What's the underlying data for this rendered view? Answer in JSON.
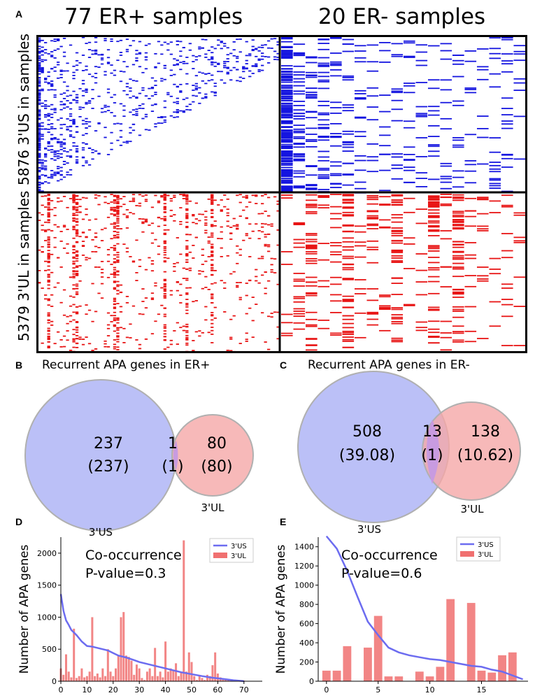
{
  "panel_labels": {
    "a": "A",
    "b": "B",
    "c": "C",
    "d": "D",
    "e": "E"
  },
  "heatmaps": {
    "col_titles": [
      "77 ER+ samples",
      "20 ER- samples"
    ],
    "row_labels": [
      "5876 3'US in samples",
      "5379 3'UL in samples"
    ],
    "colors": {
      "us": "#1515e0",
      "ul": "#e81414",
      "border": "#000000"
    }
  },
  "venn_b": {
    "title": "Recurrent APA genes in ER+",
    "left_count": "237",
    "left_expected": "(237)",
    "overlap_count": "1",
    "overlap_expected": "(1)",
    "right_count": "80",
    "right_expected": "(80)",
    "left_name": "3'US",
    "right_name": "3'UL"
  },
  "venn_c": {
    "title": "Recurrent APA genes in ER-",
    "left_count": "508",
    "left_expected": "(39.08)",
    "overlap_count": "13",
    "overlap_expected": "(1)",
    "right_count": "138",
    "right_expected": "(10.62)",
    "left_name": "3'US",
    "right_name": "3'UL"
  },
  "chart_data": [
    {
      "panel": "D",
      "type": "bar",
      "ylabel": "Number of APA genes",
      "annotation": [
        "Co-occurrence",
        "P-value=0.3"
      ],
      "xlim": [
        0,
        77
      ],
      "ylim": [
        0,
        2250
      ],
      "xticks": [
        0,
        10,
        20,
        30,
        40,
        50,
        60,
        70
      ],
      "yticks": [
        0,
        500,
        1000,
        1500,
        2000
      ],
      "legend": [
        "3'US",
        "3'UL"
      ],
      "series": [
        {
          "name": "3'US",
          "kind": "line",
          "x": [
            0,
            1,
            2,
            3,
            4,
            5,
            6,
            8,
            10,
            12,
            15,
            18,
            20,
            22,
            25,
            28,
            30,
            33,
            36,
            40,
            43,
            46,
            50,
            54,
            58,
            62,
            66,
            68,
            70
          ],
          "values": [
            1360,
            1100,
            950,
            880,
            800,
            760,
            720,
            620,
            550,
            540,
            510,
            480,
            440,
            400,
            370,
            330,
            300,
            270,
            240,
            200,
            170,
            140,
            110,
            80,
            55,
            35,
            15,
            8,
            2
          ]
        },
        {
          "name": "3'UL",
          "kind": "bar",
          "x": [
            0,
            1,
            2,
            3,
            4,
            5,
            6,
            7,
            8,
            9,
            10,
            11,
            12,
            13,
            14,
            15,
            16,
            17,
            18,
            19,
            20,
            21,
            22,
            23,
            24,
            25,
            26,
            27,
            28,
            29,
            30,
            31,
            32,
            33,
            34,
            35,
            36,
            37,
            38,
            39,
            40,
            41,
            42,
            43,
            44,
            45,
            46,
            47,
            48,
            49,
            50,
            51,
            52,
            53,
            54,
            55,
            56,
            57,
            58,
            59,
            60,
            61,
            62,
            63,
            64,
            65,
            66,
            67,
            68,
            69,
            70
          ],
          "values": [
            200,
            100,
            420,
            150,
            60,
            820,
            50,
            80,
            200,
            60,
            80,
            150,
            1000,
            80,
            120,
            60,
            200,
            80,
            500,
            150,
            80,
            200,
            400,
            1000,
            1080,
            400,
            380,
            320,
            100,
            260,
            200,
            50,
            20,
            150,
            200,
            80,
            520,
            80,
            150,
            60,
            620,
            150,
            200,
            180,
            280,
            80,
            150,
            2200,
            150,
            450,
            300,
            80,
            20,
            80,
            50,
            20,
            100,
            80,
            250,
            450,
            120,
            60,
            40,
            30,
            20,
            10,
            10,
            15,
            5,
            5,
            10
          ]
        }
      ]
    },
    {
      "panel": "E",
      "type": "bar",
      "ylabel": "Number of APA genes",
      "annotation": [
        "Co-occurrence",
        "P-value=0.6"
      ],
      "xlim": [
        -0.8,
        19.5
      ],
      "ylim": [
        0,
        1500
      ],
      "xticks": [
        0,
        5,
        10,
        15
      ],
      "yticks": [
        0,
        200,
        400,
        600,
        800,
        1000,
        1200,
        1400
      ],
      "legend": [
        "3'US",
        "3'UL"
      ],
      "series": [
        {
          "name": "3'US",
          "kind": "line",
          "x": [
            0,
            1,
            2,
            3,
            4,
            5,
            6,
            7,
            8,
            9,
            10,
            11,
            12,
            13,
            14,
            15,
            16,
            17,
            18,
            19
          ],
          "values": [
            1510,
            1380,
            1150,
            880,
            620,
            480,
            350,
            300,
            270,
            250,
            230,
            220,
            200,
            180,
            160,
            150,
            120,
            100,
            60,
            20
          ]
        },
        {
          "name": "3'UL",
          "kind": "bar",
          "x": [
            0,
            1,
            2,
            3,
            4,
            5,
            6,
            7,
            8,
            9,
            10,
            11,
            12,
            13,
            14,
            15,
            16,
            17,
            18,
            19
          ],
          "values": [
            110,
            110,
            365,
            0,
            350,
            680,
            50,
            50,
            0,
            100,
            50,
            150,
            855,
            0,
            815,
            110,
            90,
            270,
            300,
            0
          ]
        }
      ]
    }
  ]
}
